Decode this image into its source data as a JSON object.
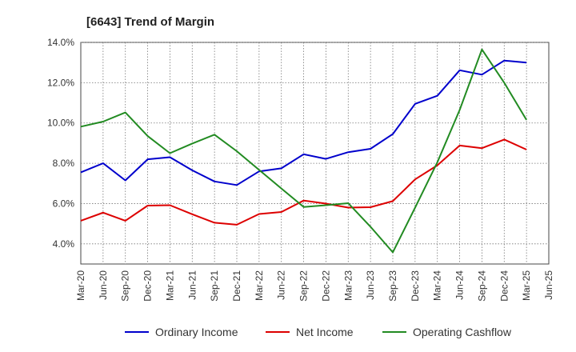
{
  "chart_data": {
    "type": "line",
    "title": "[6643]  Trend of Margin",
    "xlabel": "",
    "ylabel": "",
    "ylim": [
      3.0,
      14.0
    ],
    "yticks": [
      "4.0%",
      "6.0%",
      "8.0%",
      "10.0%",
      "12.0%",
      "14.0%"
    ],
    "ytick_values": [
      4,
      6,
      8,
      10,
      12,
      14
    ],
    "categories": [
      "Mar-20",
      "Jun-20",
      "Sep-20",
      "Dec-20",
      "Mar-21",
      "Jun-21",
      "Sep-21",
      "Dec-21",
      "Mar-22",
      "Jun-22",
      "Sep-22",
      "Dec-22",
      "Mar-23",
      "Jun-23",
      "Sep-23",
      "Dec-23",
      "Mar-24",
      "Jun-24",
      "Sep-24",
      "Dec-24",
      "Mar-25",
      "Jun-25"
    ],
    "grid": true,
    "legend_position": "bottom",
    "series": [
      {
        "name": "Ordinary Income",
        "color": "#0000cc",
        "values": [
          7.55,
          8.0,
          7.15,
          8.2,
          8.3,
          7.65,
          7.1,
          6.92,
          7.6,
          7.75,
          8.45,
          8.22,
          8.55,
          8.72,
          9.45,
          10.95,
          11.35,
          12.62,
          12.4,
          13.1,
          13.0,
          null
        ]
      },
      {
        "name": "Net Income",
        "color": "#dd0000",
        "values": [
          5.15,
          5.55,
          5.15,
          5.9,
          5.92,
          5.47,
          5.05,
          4.95,
          5.48,
          5.58,
          6.15,
          6.0,
          5.8,
          5.82,
          6.12,
          7.2,
          7.9,
          8.88,
          8.75,
          9.18,
          8.68,
          null
        ]
      },
      {
        "name": "Operating Cashflow",
        "color": "#228b22",
        "values": [
          9.82,
          10.07,
          10.52,
          9.35,
          8.5,
          8.98,
          9.42,
          8.6,
          7.67,
          6.75,
          5.83,
          5.92,
          6.02,
          4.85,
          3.58,
          5.8,
          8.05,
          10.65,
          13.65,
          12.0,
          10.15,
          null
        ]
      }
    ]
  }
}
